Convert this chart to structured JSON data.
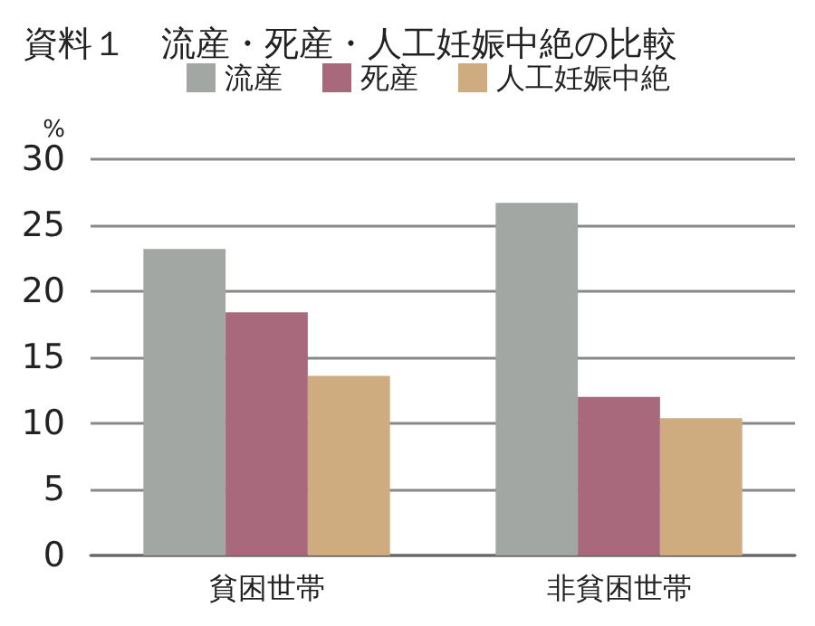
{
  "chart_data": {
    "type": "bar",
    "title": "資料１　流産・死産・人工妊娠中絶の比較",
    "ylabel": "%",
    "categories": [
      "貧困世帯",
      "非貧困世帯"
    ],
    "series": [
      {
        "name": "流産",
        "color": "#a2a7a3",
        "values": [
          23.2,
          26.7
        ]
      },
      {
        "name": "死産",
        "color": "#a8697c",
        "values": [
          18.4,
          12.0
        ]
      },
      {
        "name": "人工妊娠中絶",
        "color": "#cfac80",
        "values": [
          13.6,
          10.4
        ]
      }
    ],
    "ylim": [
      0,
      30
    ],
    "yticks": [
      0,
      5,
      10,
      15,
      20,
      25,
      30
    ],
    "grid": "y",
    "legend": "top"
  }
}
